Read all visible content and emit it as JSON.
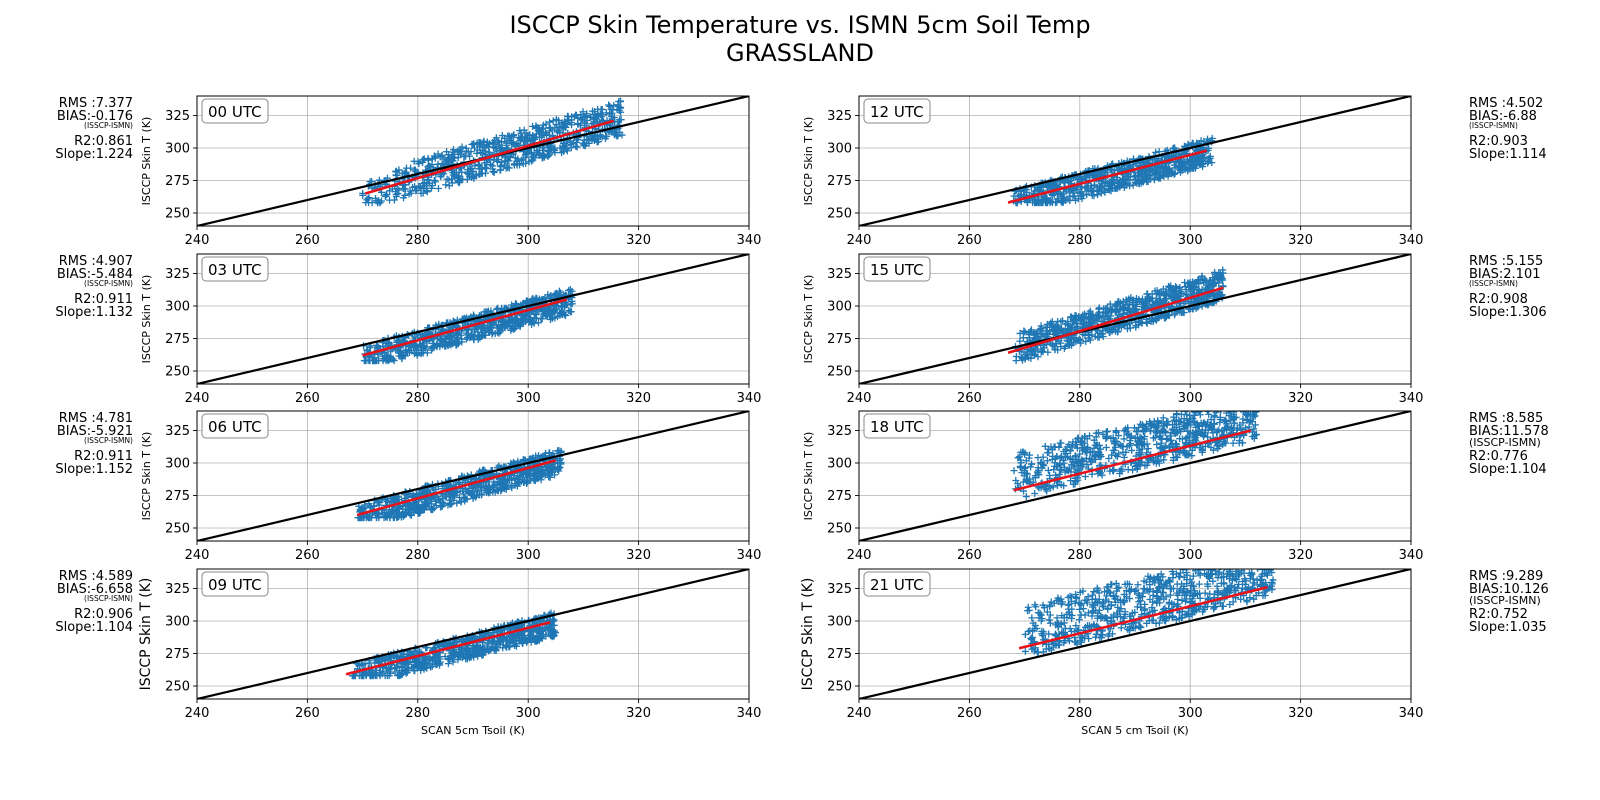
{
  "figure": {
    "title_line1": "ISCCP Skin Temperature vs. ISMN 5cm Soil Temp",
    "title_line2": "GRASSLAND"
  },
  "colors": {
    "points": "#1f77b4",
    "fit_line": "#e8131a",
    "one_to_one": "#000000",
    "grid": "#b0b0b0"
  },
  "chart_data": [
    {
      "type": "scatter",
      "panel": "00 UTC",
      "x_range": [
        270,
        317
      ],
      "y_band": [
        -13,
        14
      ],
      "fit": {
        "x": [
          270.5,
          315.5
        ],
        "y": [
          265,
          321
        ]
      },
      "stats": {
        "rms": "RMS :7.377",
        "bias": "BIAS:-0.176",
        "bias_note": "(ISSCP-ISMN)",
        "r2": "R2:0.861",
        "slope": "Slope:1.224"
      },
      "xlabel": "",
      "ylabel": "ISCCP Skin T (K)",
      "xlim": [
        240,
        340
      ],
      "ylim": [
        240,
        340
      ],
      "xticks": [
        240,
        260,
        280,
        300,
        320,
        340
      ],
      "yticks": [
        250,
        275,
        300,
        325
      ],
      "grid": true
    },
    {
      "type": "scatter",
      "panel": "12 UTC",
      "x_range": [
        268,
        304
      ],
      "y_band": [
        -12,
        9
      ],
      "fit": {
        "x": [
          267,
          303
        ],
        "y": [
          258,
          298
        ]
      },
      "stats": {
        "rms": "RMS :4.502",
        "bias": "BIAS:-6.88",
        "bias_note": "(ISSCP-ISMN)",
        "r2": "R2:0.903",
        "slope": "Slope:1.114"
      },
      "xlabel": "",
      "ylabel": "ISCCP Skin T (K)",
      "xlim": [
        240,
        340
      ],
      "ylim": [
        240,
        340
      ],
      "xticks": [
        240,
        260,
        280,
        300,
        320,
        340
      ],
      "yticks": [
        250,
        275,
        300,
        325
      ],
      "grid": true
    },
    {
      "type": "scatter",
      "panel": "03 UTC",
      "x_range": [
        270,
        308
      ],
      "y_band": [
        -12,
        8
      ],
      "fit": {
        "x": [
          270,
          307
        ],
        "y": [
          262,
          305
        ]
      },
      "stats": {
        "rms": "RMS :4.907",
        "bias": "BIAS:-5.484",
        "bias_note": "(ISSCP-ISMN)",
        "r2": "R2:0.911",
        "slope": "Slope:1.132"
      },
      "xlabel": "",
      "ylabel": "ISCCP Skin T (K)",
      "xlim": [
        240,
        340
      ],
      "ylim": [
        240,
        340
      ],
      "xticks": [
        240,
        260,
        280,
        300,
        320,
        340
      ],
      "yticks": [
        250,
        275,
        300,
        325
      ],
      "grid": true
    },
    {
      "type": "scatter",
      "panel": "15 UTC",
      "x_range": [
        268,
        306
      ],
      "y_band": [
        -10,
        14
      ],
      "fit": {
        "x": [
          267,
          306
        ],
        "y": [
          264,
          314
        ]
      },
      "stats": {
        "rms": "RMS :5.155",
        "bias": "BIAS:2.101",
        "bias_note": "(ISSCP-ISMN)",
        "r2": "R2:0.908",
        "slope": "Slope:1.306"
      },
      "xlabel": "",
      "ylabel": "ISCCP Skin T (K)",
      "xlim": [
        240,
        340
      ],
      "ylim": [
        240,
        340
      ],
      "xticks": [
        240,
        260,
        280,
        300,
        320,
        340
      ],
      "yticks": [
        250,
        275,
        300,
        325
      ],
      "grid": true
    },
    {
      "type": "scatter",
      "panel": "06 UTC",
      "x_range": [
        269,
        306
      ],
      "y_band": [
        -12,
        8
      ],
      "fit": {
        "x": [
          269,
          305
        ],
        "y": [
          260,
          302
        ]
      },
      "stats": {
        "rms": "RMS :4.781",
        "bias": "BIAS:-5.921",
        "bias_note": "(ISSCP-ISMN)",
        "r2": "R2:0.911",
        "slope": "Slope:1.152"
      },
      "xlabel": "",
      "ylabel": "ISCCP Skin T (K)",
      "xlim": [
        240,
        340
      ],
      "ylim": [
        240,
        340
      ],
      "xticks": [
        240,
        260,
        280,
        300,
        320,
        340
      ],
      "yticks": [
        250,
        275,
        300,
        325
      ],
      "grid": true
    },
    {
      "type": "scatter",
      "panel": "18 UTC",
      "x_range": [
        268,
        312
      ],
      "y_band": [
        -8,
        28
      ],
      "fit": {
        "x": [
          268,
          311
        ],
        "y": [
          279,
          325
        ]
      },
      "stats": {
        "rms": "RMS :8.585",
        "bias": "BIAS:11.578",
        "bias_note": "(ISSCP-ISMN)",
        "r2": "R2:0.776",
        "slope": "Slope:1.104"
      },
      "xlabel": "",
      "ylabel": "ISCCP Skin T (K)",
      "xlim": [
        240,
        340
      ],
      "ylim": [
        240,
        340
      ],
      "xticks": [
        240,
        260,
        280,
        300,
        320,
        340
      ],
      "yticks": [
        250,
        275,
        300,
        325
      ],
      "grid": true
    },
    {
      "type": "scatter",
      "panel": "09 UTC",
      "x_range": [
        268,
        305
      ],
      "y_band": [
        -12,
        7
      ],
      "fit": {
        "x": [
          267,
          304
        ],
        "y": [
          259,
          299
        ]
      },
      "stats": {
        "rms": "RMS :4.589",
        "bias": "BIAS:-6.658",
        "bias_note": "(ISSCP-ISMN)",
        "r2": "R2:0.906",
        "slope": "Slope:1.104"
      },
      "xlabel": "SCAN 5cm Tsoil (K)",
      "ylabel": "ISCCP Skin T (K)",
      "xlim": [
        240,
        340
      ],
      "ylim": [
        240,
        340
      ],
      "xticks": [
        240,
        260,
        280,
        300,
        320,
        340
      ],
      "yticks": [
        250,
        275,
        300,
        325
      ],
      "grid": true
    },
    {
      "type": "scatter",
      "panel": "21 UTC",
      "x_range": [
        270,
        315
      ],
      "y_band": [
        -8,
        32
      ],
      "fit": {
        "x": [
          269,
          314
        ],
        "y": [
          279,
          326
        ]
      },
      "stats": {
        "rms": "RMS :9.289",
        "bias": "BIAS:10.126",
        "bias_note": "(ISSCP-ISMN)",
        "r2": "R2:0.752",
        "slope": "Slope:1.035"
      },
      "xlabel": "SCAN 5 cm Tsoil (K)",
      "ylabel": "ISCCP Skin T (K)",
      "xlim": [
        240,
        340
      ],
      "ylim": [
        240,
        340
      ],
      "xticks": [
        240,
        260,
        280,
        300,
        320,
        340
      ],
      "yticks": [
        250,
        275,
        300,
        325
      ],
      "grid": true
    }
  ]
}
